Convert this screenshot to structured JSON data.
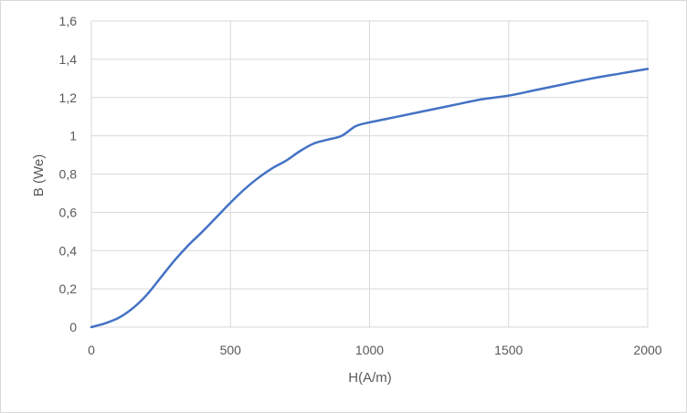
{
  "chart_data": {
    "type": "line",
    "title": "",
    "xlabel": "H(A/m)",
    "ylabel": "B (We)",
    "xlim": [
      0,
      2000
    ],
    "ylim": [
      0,
      1.6
    ],
    "x_ticks": [
      0,
      500,
      1000,
      1500,
      2000
    ],
    "x_tick_labels": [
      "0",
      "500",
      "1000",
      "1500",
      "2000"
    ],
    "y_ticks": [
      0,
      0.2,
      0.4,
      0.6,
      0.8,
      1.0,
      1.2,
      1.4,
      1.6
    ],
    "y_tick_labels": [
      "0",
      "0,2",
      "0,4",
      "0,6",
      "0,8",
      "1",
      "1,2",
      "1,4",
      "1,6"
    ],
    "grid": true,
    "legend": "none",
    "series": [
      {
        "color": "#4472c4",
        "x": [
          0,
          50,
          100,
          150,
          200,
          250,
          300,
          350,
          400,
          450,
          500,
          550,
          600,
          650,
          700,
          750,
          800,
          850,
          900,
          950,
          1000,
          1100,
          1200,
          1300,
          1400,
          1500,
          1600,
          1700,
          1800,
          1900,
          2000
        ],
        "y": [
          0,
          0.02,
          0.05,
          0.1,
          0.17,
          0.26,
          0.35,
          0.43,
          0.5,
          0.575,
          0.65,
          0.72,
          0.78,
          0.83,
          0.87,
          0.92,
          0.96,
          0.98,
          1.0,
          1.05,
          1.07,
          1.1,
          1.13,
          1.16,
          1.19,
          1.21,
          1.24,
          1.27,
          1.3,
          1.325,
          1.35
        ]
      }
    ]
  }
}
